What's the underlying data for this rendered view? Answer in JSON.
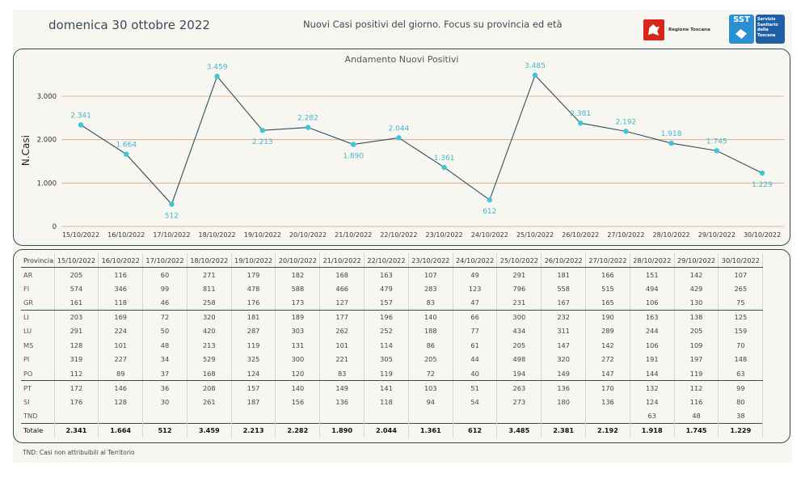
{
  "header": {
    "date": "domenica 30 ottobre 2022",
    "title": "Nuovi Casi positivi del giorno. Focus su provincia ed età",
    "logo_regione": "Regione Toscana",
    "logo_sst_short": "SST",
    "logo_sst_full": "Servizio Sanitario della Toscana"
  },
  "chart_data": {
    "type": "line",
    "title": "Andamento Nuovi Positivi",
    "xlabel": "",
    "ylabel": "N.Casi",
    "ylim": [
      0,
      3500
    ],
    "yticks": [
      0,
      1000,
      2000,
      3000
    ],
    "ytick_labels": [
      "0",
      "1.000",
      "2.000",
      "3.000"
    ],
    "grid": true,
    "categories": [
      "15/10/2022",
      "16/10/2022",
      "17/10/2022",
      "18/10/2022",
      "19/10/2022",
      "20/10/2022",
      "21/10/2022",
      "22/10/2022",
      "23/10/2022",
      "24/10/2022",
      "25/10/2022",
      "26/10/2022",
      "27/10/2022",
      "28/10/2022",
      "29/10/2022",
      "30/10/2022"
    ],
    "series": [
      {
        "values": [
          2341,
          1664,
          512,
          3459,
          2213,
          2282,
          1890,
          2044,
          1361,
          612,
          3485,
          2381,
          2192,
          1918,
          1745,
          1229
        ],
        "labels": [
          "2.341",
          "1.664",
          "512",
          "3.459",
          "2.213",
          "2.282",
          "1.890",
          "2.044",
          "1.361",
          "612",
          "3.485",
          "2.381",
          "2.192",
          "1.918",
          "1.745",
          "1.229"
        ],
        "label_pos": [
          "above",
          "above",
          "below",
          "above",
          "below",
          "above",
          "below",
          "above",
          "above",
          "below",
          "above",
          "above",
          "above",
          "above",
          "above",
          "below"
        ]
      }
    ],
    "colors": {
      "line": "#2f4f5f",
      "marker": "#3fc5d8",
      "label": "#3fb8cc",
      "grid": "#d9a07a"
    }
  },
  "table": {
    "header_label": "Provincia",
    "columns": [
      "15/10/2022",
      "16/10/2022",
      "17/10/2022",
      "18/10/2022",
      "19/10/2022",
      "20/10/2022",
      "21/10/2022",
      "22/10/2022",
      "23/10/2022",
      "24/10/2022",
      "25/10/2022",
      "26/10/2022",
      "27/10/2022",
      "28/10/2022",
      "29/10/2022",
      "30/10/2022"
    ],
    "rows": [
      {
        "name": "AR",
        "values": [
          "205",
          "116",
          "60",
          "271",
          "179",
          "182",
          "168",
          "163",
          "107",
          "49",
          "291",
          "181",
          "166",
          "151",
          "142",
          "107"
        ]
      },
      {
        "name": "FI",
        "values": [
          "574",
          "346",
          "99",
          "811",
          "478",
          "588",
          "466",
          "479",
          "283",
          "123",
          "796",
          "558",
          "515",
          "494",
          "429",
          "265"
        ]
      },
      {
        "name": "GR",
        "values": [
          "161",
          "118",
          "46",
          "258",
          "176",
          "173",
          "127",
          "157",
          "83",
          "47",
          "231",
          "167",
          "165",
          "106",
          "130",
          "75"
        ]
      },
      {
        "name": "LI",
        "values": [
          "203",
          "169",
          "72",
          "320",
          "181",
          "189",
          "177",
          "196",
          "140",
          "66",
          "300",
          "232",
          "190",
          "163",
          "138",
          "125"
        ]
      },
      {
        "name": "LU",
        "values": [
          "291",
          "224",
          "50",
          "420",
          "287",
          "303",
          "262",
          "252",
          "188",
          "77",
          "434",
          "311",
          "289",
          "244",
          "205",
          "159"
        ]
      },
      {
        "name": "MS",
        "values": [
          "128",
          "101",
          "48",
          "213",
          "119",
          "131",
          "101",
          "114",
          "86",
          "61",
          "205",
          "147",
          "142",
          "106",
          "109",
          "70"
        ]
      },
      {
        "name": "PI",
        "values": [
          "319",
          "227",
          "34",
          "529",
          "325",
          "300",
          "221",
          "305",
          "205",
          "44",
          "498",
          "320",
          "272",
          "191",
          "197",
          "148"
        ]
      },
      {
        "name": "PO",
        "values": [
          "112",
          "89",
          "37",
          "168",
          "124",
          "120",
          "83",
          "119",
          "72",
          "40",
          "194",
          "149",
          "147",
          "144",
          "119",
          "63"
        ]
      },
      {
        "name": "PT",
        "values": [
          "172",
          "146",
          "36",
          "208",
          "157",
          "140",
          "149",
          "141",
          "103",
          "51",
          "263",
          "136",
          "170",
          "132",
          "112",
          "99"
        ]
      },
      {
        "name": "SI",
        "values": [
          "176",
          "128",
          "30",
          "261",
          "187",
          "156",
          "136",
          "118",
          "94",
          "54",
          "273",
          "180",
          "136",
          "124",
          "116",
          "80"
        ]
      },
      {
        "name": "TND",
        "values": [
          "",
          "",
          "",
          "",
          "",
          "",
          "",
          "",
          "",
          "",
          "",
          "",
          "",
          "63",
          "48",
          "38"
        ]
      }
    ],
    "total": {
      "name": "Totale",
      "values": [
        "2.341",
        "1.664",
        "512",
        "3.459",
        "2.213",
        "2.282",
        "1.890",
        "2.044",
        "1.361",
        "612",
        "3.485",
        "2.381",
        "2.192",
        "1.918",
        "1.745",
        "1.229"
      ]
    },
    "separator_after": [
      "GR",
      "PO"
    ]
  },
  "footnote": "TND:  Casi non attribuibili al Territorio"
}
